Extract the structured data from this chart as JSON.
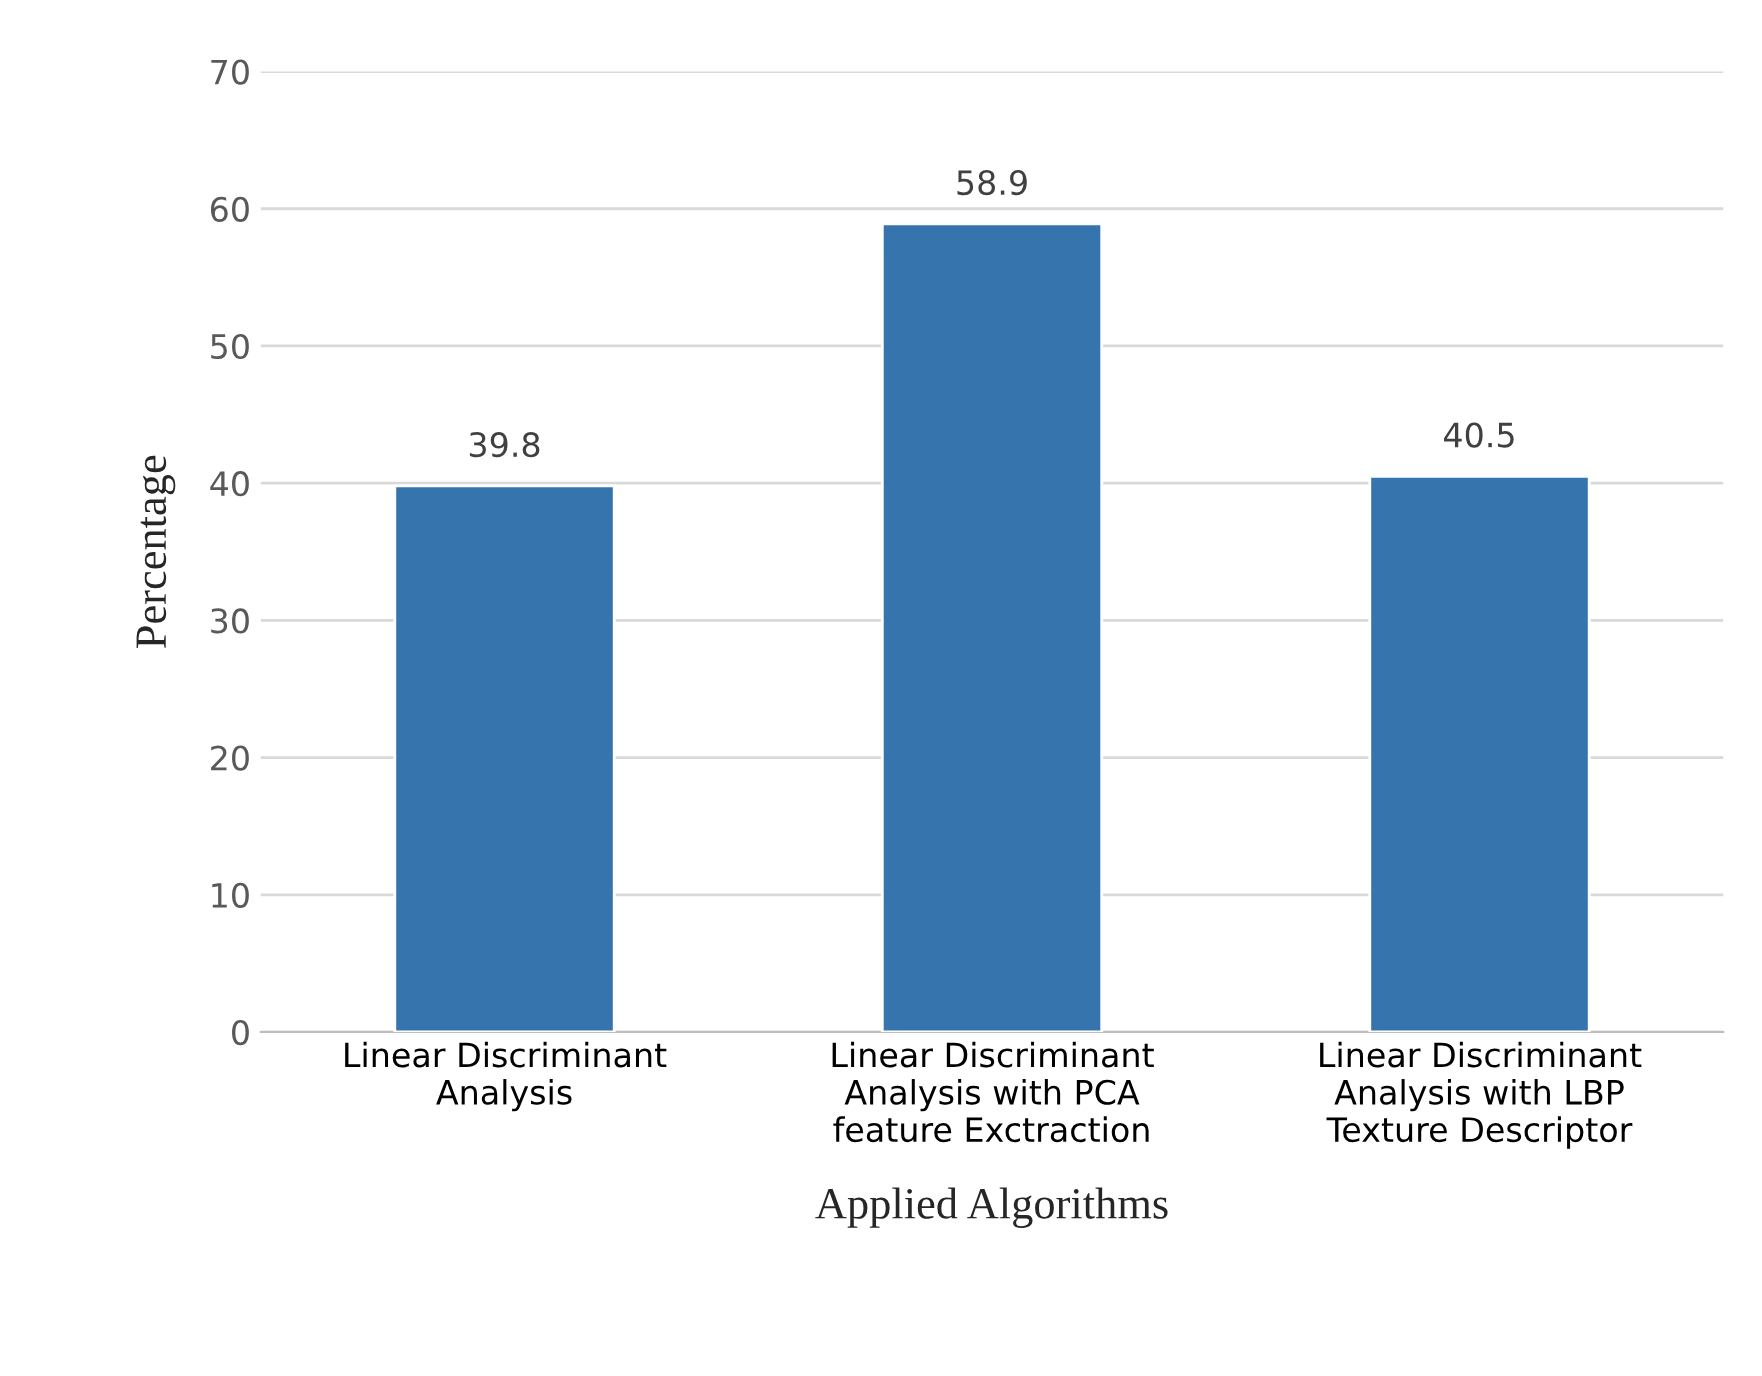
{
  "chart_data": {
    "type": "bar",
    "xlabel": "Applied Algorithms",
    "ylabel": "Percentage",
    "categories": [
      "Linear Discriminant\nAnalysis",
      "Linear Discriminant\nAnalysis with PCA\nfeature Exctraction",
      "Linear Discriminant\nAnalysis with LBP\nTexture Descriptor"
    ],
    "values": [
      39.8,
      58.9,
      40.5
    ],
    "color": "#3574ad",
    "ylim": [
      0,
      70
    ],
    "yticks": [
      0,
      10,
      20,
      30,
      40,
      50,
      60,
      70
    ],
    "grid": "y",
    "data_labels": true
  }
}
